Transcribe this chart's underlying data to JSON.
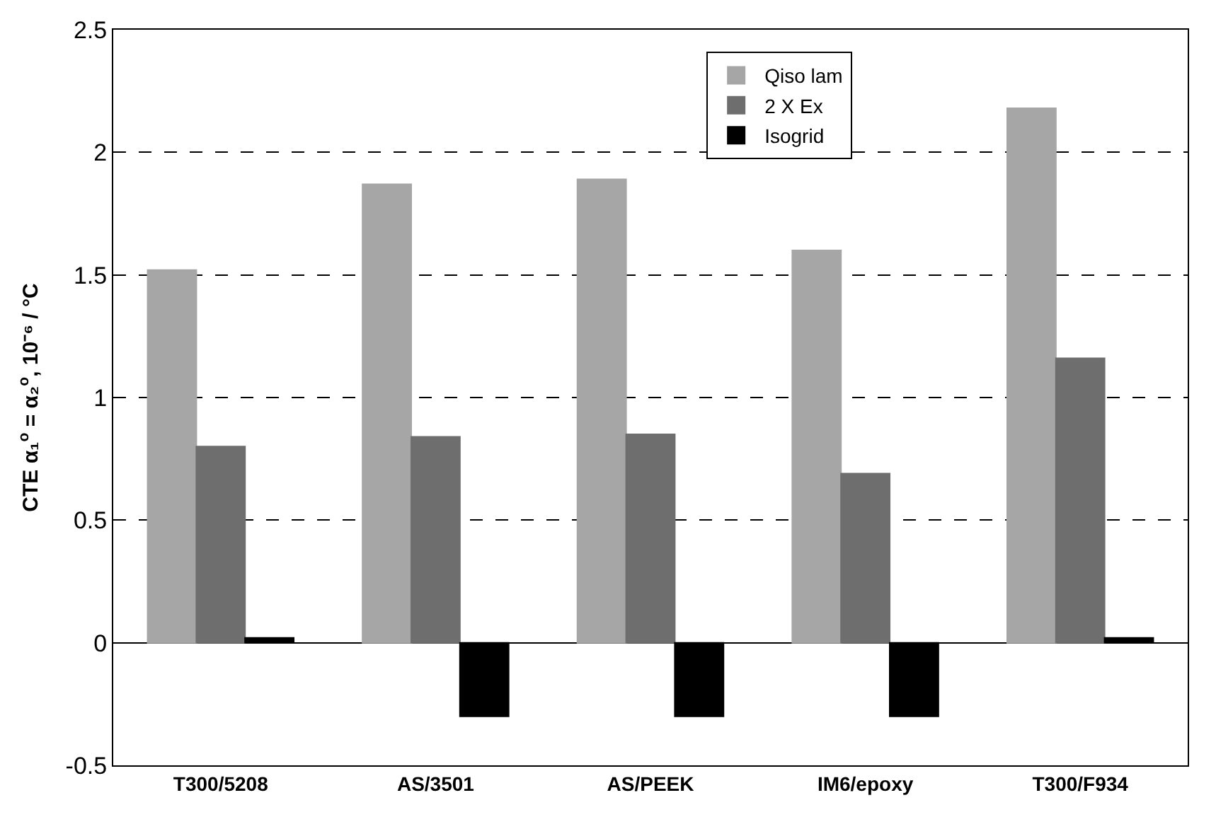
{
  "chart_data": {
    "type": "bar",
    "ylabel": "CTE α₁$^{o}$ = α₂$^{o}$, 10⁻⁶ / °C",
    "categories": [
      "T300/5208",
      "AS/3501",
      "AS/PEEK",
      "IM6/epoxy",
      "T300/F934"
    ],
    "series": [
      {
        "name": "Qiso lam",
        "color": "#a6a6a6",
        "values": [
          1.52,
          1.87,
          1.89,
          1.6,
          2.18
        ]
      },
      {
        "name": "2 X Ex",
        "color": "#6e6e6e",
        "values": [
          0.8,
          0.84,
          0.85,
          0.69,
          1.16
        ]
      },
      {
        "name": "Isogrid",
        "color": "#000000",
        "values": [
          0.02,
          -0.3,
          -0.3,
          -0.3,
          0.02
        ]
      }
    ],
    "ylim": [
      -0.5,
      2.5
    ],
    "yticks": [
      -0.5,
      0,
      0.5,
      1,
      1.5,
      2,
      2.5
    ],
    "grid": "y",
    "legend": "top right"
  }
}
